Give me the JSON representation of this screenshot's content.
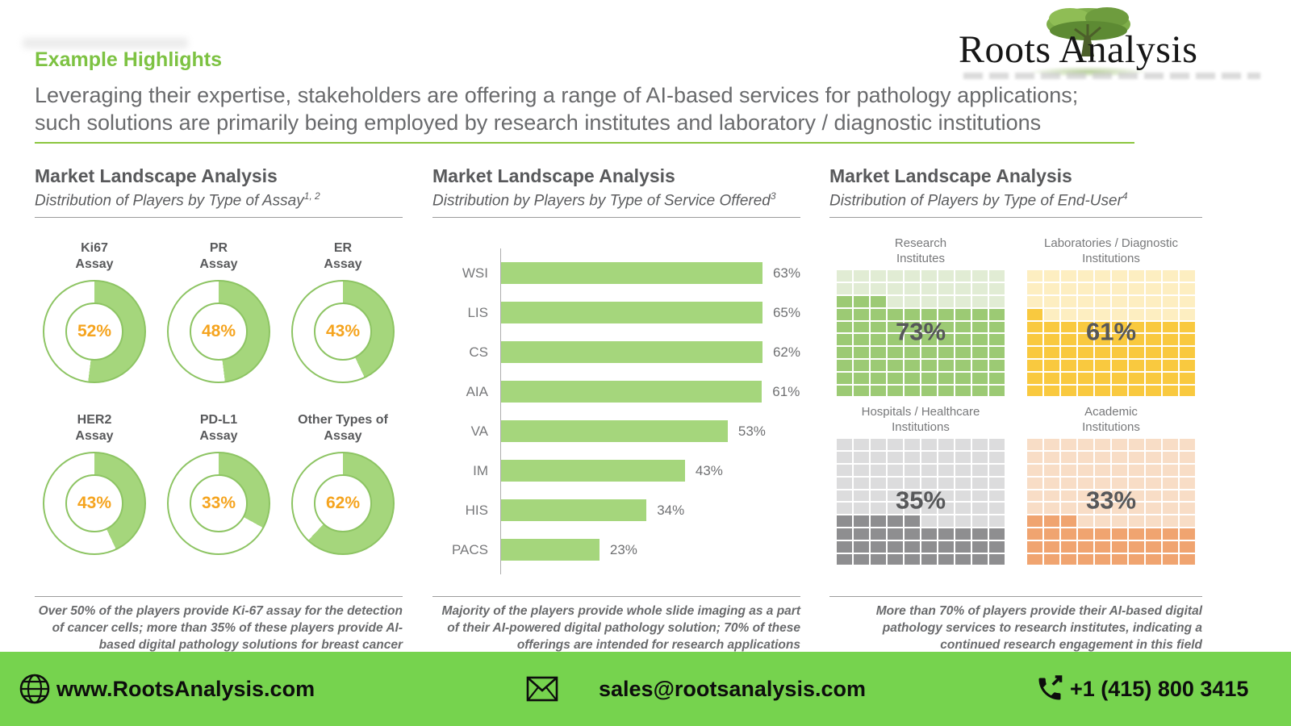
{
  "header": {
    "eyebrow": "Example Highlights",
    "line1": "Leveraging their expertise, stakeholders are offering a range of AI-based services for pathology applications;",
    "line2": "such solutions are primarily being employed by research institutes and laboratory / diagnostic institutions",
    "accent_color": "#7dc242"
  },
  "logo": {
    "text": "Roots Analysis"
  },
  "chart_data": [
    {
      "type": "donut",
      "title": "Market Landscape Analysis",
      "subtitle": "Distribution of Players by Type of Assay",
      "superscript": "1, 2",
      "colors": {
        "fill": "#a5d67c",
        "stroke": "#8dc463",
        "value_text": "#f5a41f"
      },
      "items": [
        {
          "label": "Ki67\nAssay",
          "value": 52
        },
        {
          "label": "PR\nAssay",
          "value": 48
        },
        {
          "label": "ER\nAssay",
          "value": 43
        },
        {
          "label": "HER2\nAssay",
          "value": 43
        },
        {
          "label": "PD-L1\nAssay",
          "value": 33
        },
        {
          "label": "Other Types of\nAssay",
          "value": 62
        }
      ],
      "value_suffix": "%",
      "footnote": "Over 50% of the players provide Ki-67 assay for the detection of cancer cells; more than 35% of these players provide AI-based digital pathology solutions for breast cancer"
    },
    {
      "type": "bar",
      "title": "Market Landscape Analysis",
      "subtitle": "Distribution by Players by Type of Service Offered",
      "superscript": "3",
      "bar_color": "#a5d67c",
      "categories": [
        "WSI",
        "LIS",
        "CS",
        "AIA",
        "VA",
        "IM",
        "HIS",
        "PACS"
      ],
      "values": [
        63,
        65,
        62,
        61,
        53,
        43,
        34,
        23
      ],
      "value_suffix": "%",
      "xlim": [
        0,
        70
      ],
      "grid": false,
      "footnote": "Majority of the players provide whole slide imaging as a part of their AI-powered digital pathology solution; 70% of these offerings are intended for research applications"
    },
    {
      "type": "waffle",
      "title": "Market Landscape Analysis",
      "subtitle": "Distribution of Players by Type of End-User",
      "superscript": "4",
      "grid": {
        "rows": 10,
        "cols": 10
      },
      "value_text_color": "#57585a",
      "value_suffix": "%",
      "items": [
        {
          "label": "Research\nInstitutes",
          "value": 73,
          "fill": "#9cca74",
          "empty": "#e1ecd4"
        },
        {
          "label": "Laboratories / Diagnostic\nInstitutions",
          "value": 61,
          "fill": "#f9c93f",
          "empty": "#fdeec1"
        },
        {
          "label": "Hospitals / Healthcare\nInstitutions",
          "value": 35,
          "fill": "#8e8e90",
          "empty": "#dcdcdd"
        },
        {
          "label": "Academic\nInstitutions",
          "value": 33,
          "fill": "#f0a470",
          "empty": "#f8ddc6"
        }
      ],
      "footnote": "More than 70% of players provide their AI-based digital pathology services to research institutes, indicating a continued research engagement in this field"
    }
  ],
  "footer": {
    "website": "www.RootsAnalysis.com",
    "email": "sales@rootsanalysis.com",
    "phone": "+1 (415) 800 3415",
    "bg_color": "#76d34e"
  }
}
